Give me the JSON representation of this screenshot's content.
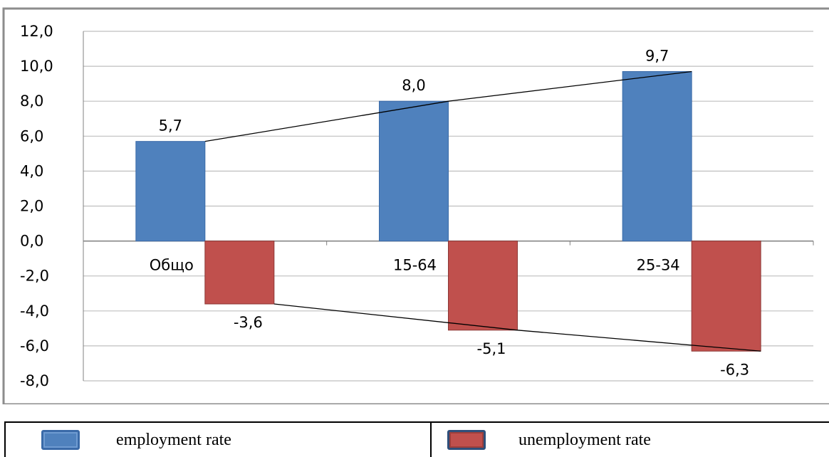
{
  "chart_data": {
    "type": "bar",
    "categories": [
      "Общо",
      "15-64",
      "25-34"
    ],
    "series": [
      {
        "name": "employment rate",
        "values": [
          5.7,
          8.0,
          9.7
        ],
        "labels": [
          "5,7",
          "8,0",
          "9,7"
        ],
        "color": "#4f81bd",
        "border": "#3a6aa8"
      },
      {
        "name": "unemployment rate",
        "values": [
          -3.6,
          -5.1,
          -6.3
        ],
        "labels": [
          "-3,6",
          "-5,1",
          "-6,3"
        ],
        "color": "#c0504d",
        "border": "#8c3836"
      }
    ],
    "y_ticks": [
      "12,0",
      "10,0",
      "8,0",
      "6,0",
      "4,0",
      "2,0",
      "0,0",
      "-2,0",
      "-4,0",
      "-6,0",
      "-8,0"
    ],
    "ylim": [
      -8,
      12
    ],
    "grid": true,
    "trend_lines": true,
    "legend_position": "bottom"
  },
  "legend": {
    "employment_label": "employment rate",
    "unemployment_label": "unemployment rate",
    "employment_swatch": "#4f81bd",
    "unemployment_swatch": "#c0504d"
  }
}
